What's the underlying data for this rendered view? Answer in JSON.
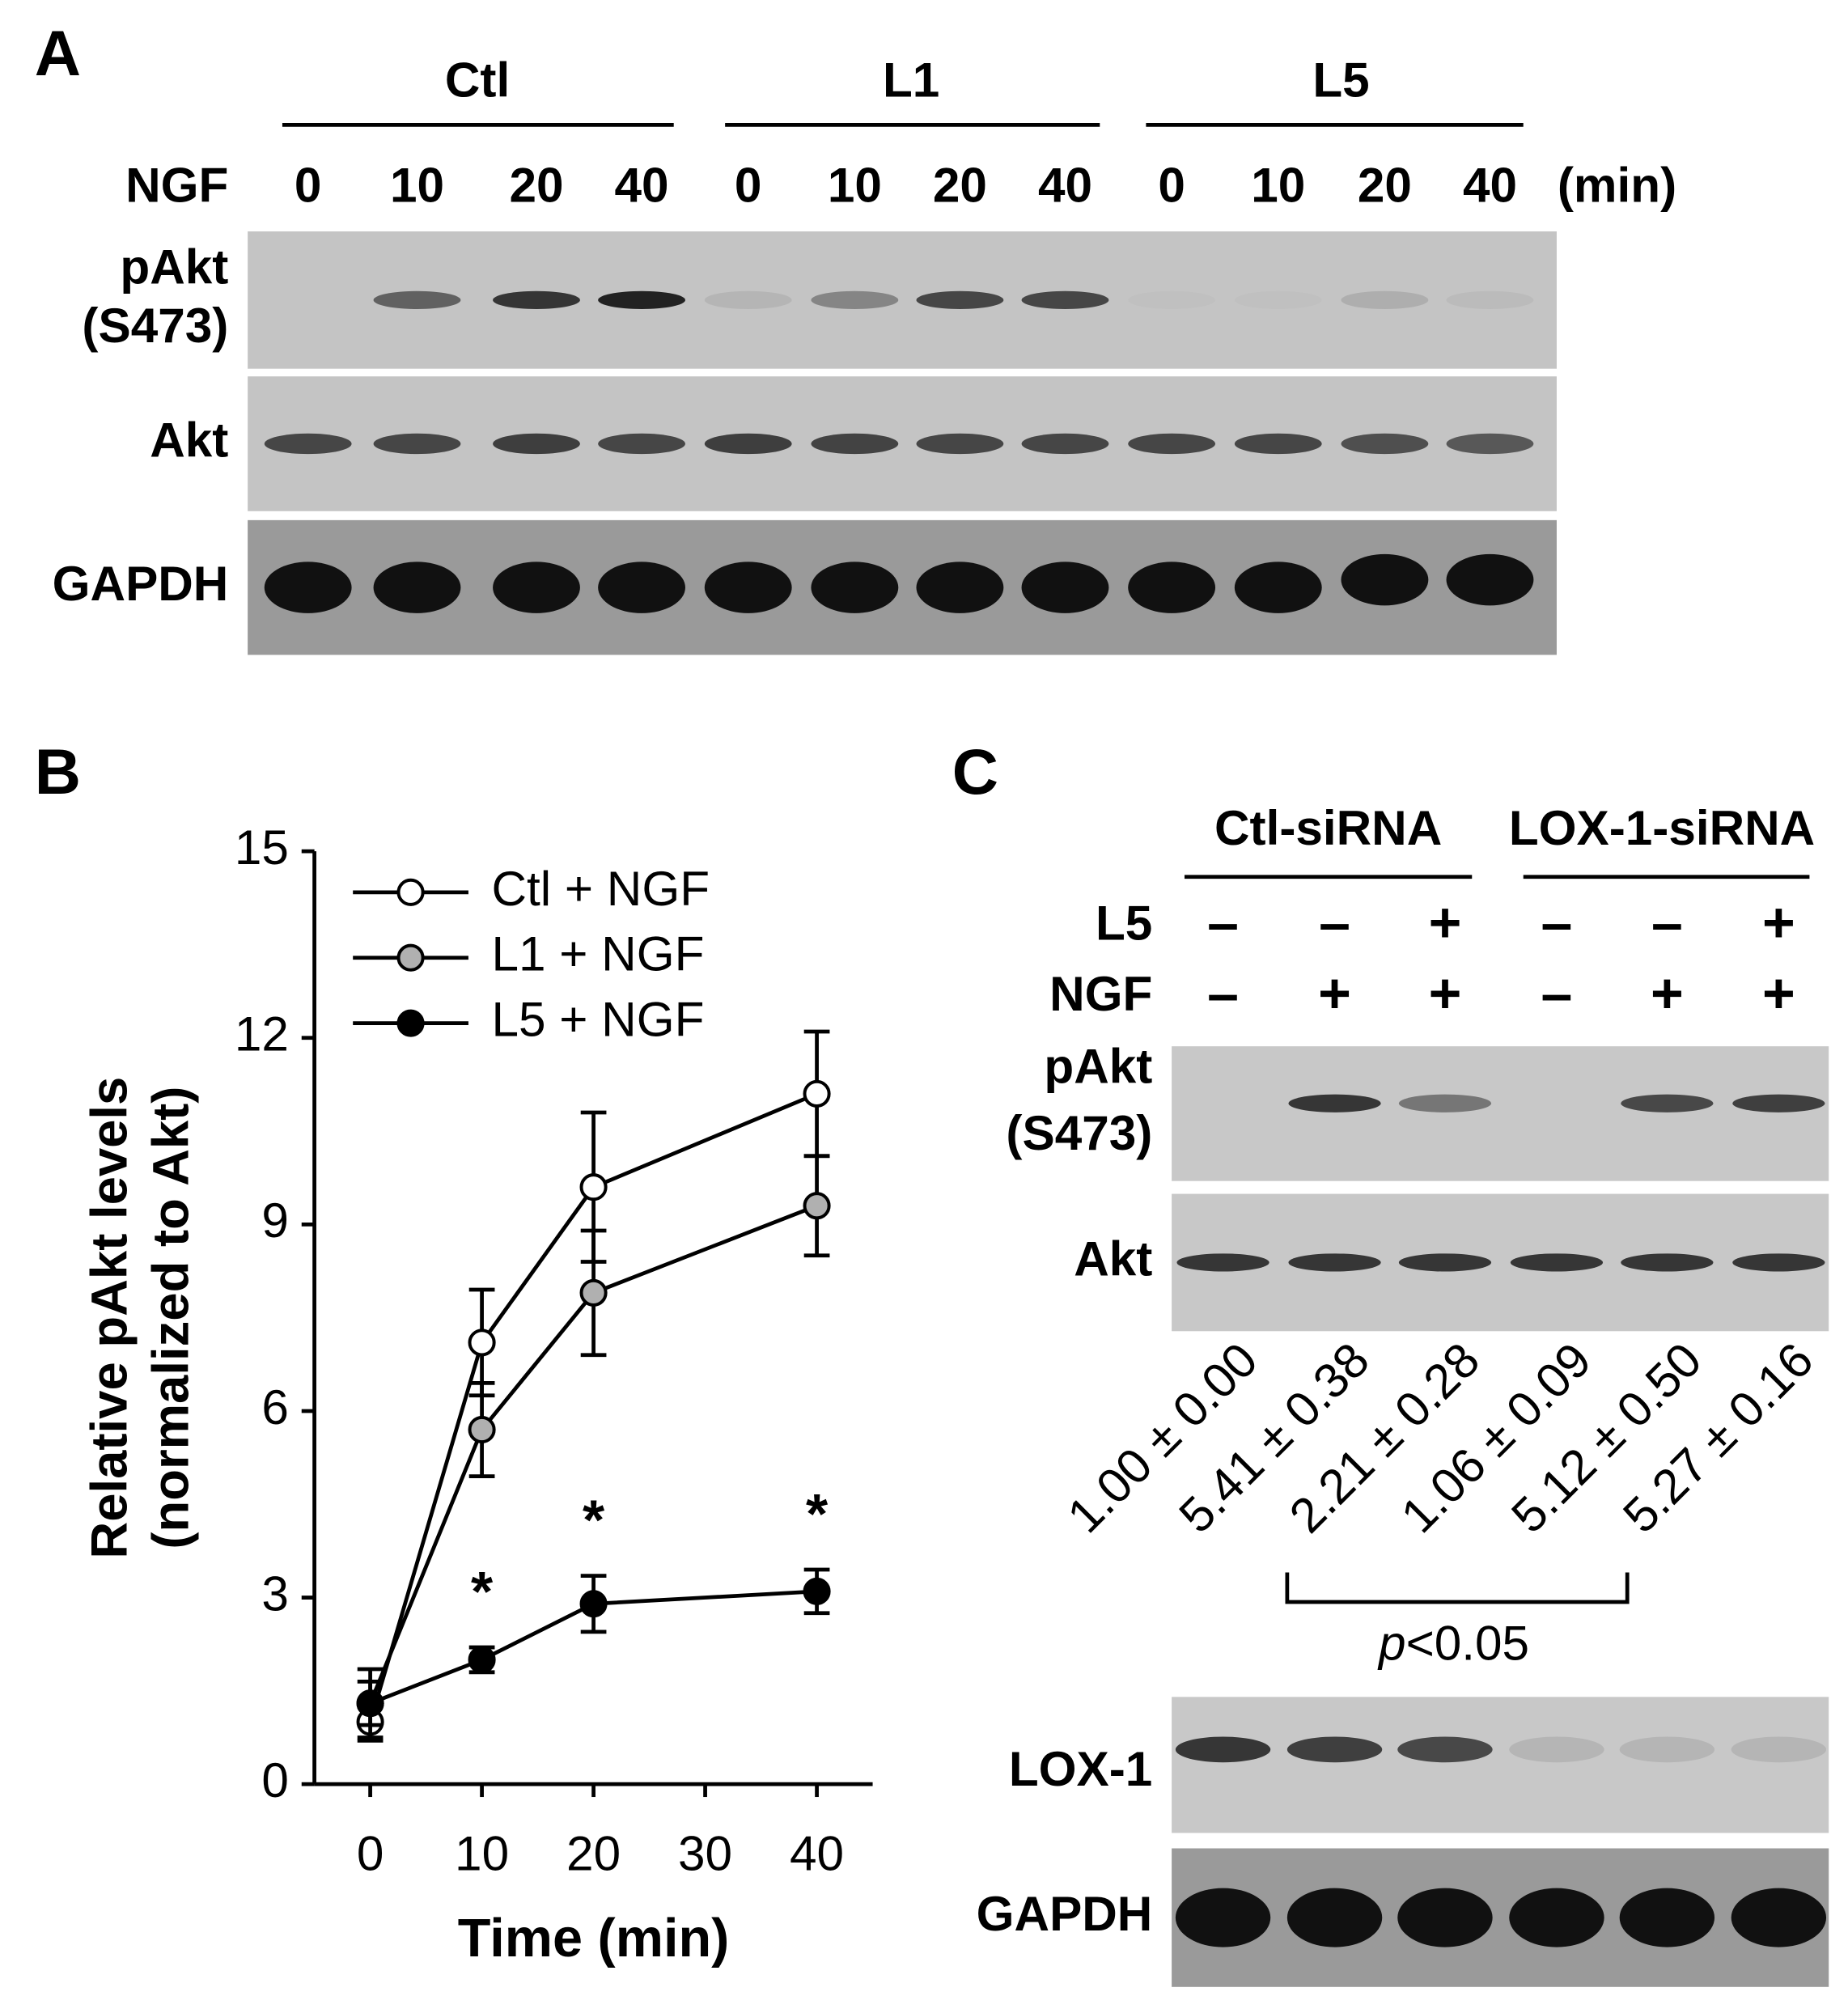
{
  "panel_a": {
    "letter": "A",
    "groups": [
      "Ctl",
      "L1",
      "L5"
    ],
    "treatment_label": "NGF",
    "times": [
      "0",
      "10",
      "20",
      "40",
      "0",
      "10",
      "20",
      "40",
      "0",
      "10",
      "20",
      "40"
    ],
    "time_unit": "(min)",
    "blots": [
      [
        "pAkt",
        "(S473)"
      ],
      [
        "Akt"
      ],
      [
        "GAPDH"
      ]
    ]
  },
  "chart_data": {
    "type": "line",
    "letter": "B",
    "x_label": "Time (min)",
    "y_label": [
      "Relative pAkt levels",
      "(normalized to Akt)"
    ],
    "x": [
      0,
      10,
      20,
      40
    ],
    "xlim": [
      -5,
      45
    ],
    "xticks": [
      0,
      10,
      20,
      30,
      40
    ],
    "ylim": [
      0,
      15
    ],
    "yticks": [
      0,
      3,
      6,
      9,
      12,
      15
    ],
    "legend": "top-left",
    "series": [
      {
        "name": "Ctl + NGF",
        "color": "#ffffff",
        "values": [
          1.0,
          7.1,
          9.6,
          11.1
        ],
        "errors": [
          0.3,
          0.85,
          1.2,
          1.0
        ],
        "annotations": [
          null,
          null,
          null,
          null
        ]
      },
      {
        "name": "L1 + NGF",
        "color": "#b0b0b0",
        "values": [
          1.3,
          5.7,
          7.9,
          9.3
        ],
        "errors": [
          0.55,
          0.75,
          1.0,
          0.8
        ],
        "annotations": [
          null,
          null,
          null,
          null
        ]
      },
      {
        "name": "L5 + NGF",
        "color": "#000000",
        "values": [
          1.3,
          2.0,
          2.9,
          3.1
        ],
        "errors": [
          0.35,
          0.2,
          0.45,
          0.35
        ],
        "annotations": [
          null,
          "*",
          "*",
          "*"
        ]
      }
    ]
  },
  "panel_c": {
    "letter": "C",
    "groups": [
      "Ctl-siRNA",
      "LOX-1-siRNA"
    ],
    "rows": [
      {
        "label": "L5",
        "signs": [
          "–",
          "–",
          "+",
          "–",
          "–",
          "+"
        ]
      },
      {
        "label": "NGF",
        "signs": [
          "–",
          "+",
          "+",
          "–",
          "+",
          "+"
        ]
      }
    ],
    "blots_top": [
      [
        "pAkt",
        "(S473)"
      ],
      [
        "Akt"
      ]
    ],
    "quantification": [
      "1.00 ± 0.00",
      "5.41 ± 0.38",
      "2.21 ± 0.28",
      "1.06 ± 0.09",
      "5.12 ± 0.50",
      "5.27 ± 0.16"
    ],
    "significance": {
      "p": "p",
      "threshold": "<0.05"
    },
    "blots_bottom": [
      [
        "LOX-1"
      ],
      [
        "GAPDH"
      ]
    ]
  }
}
